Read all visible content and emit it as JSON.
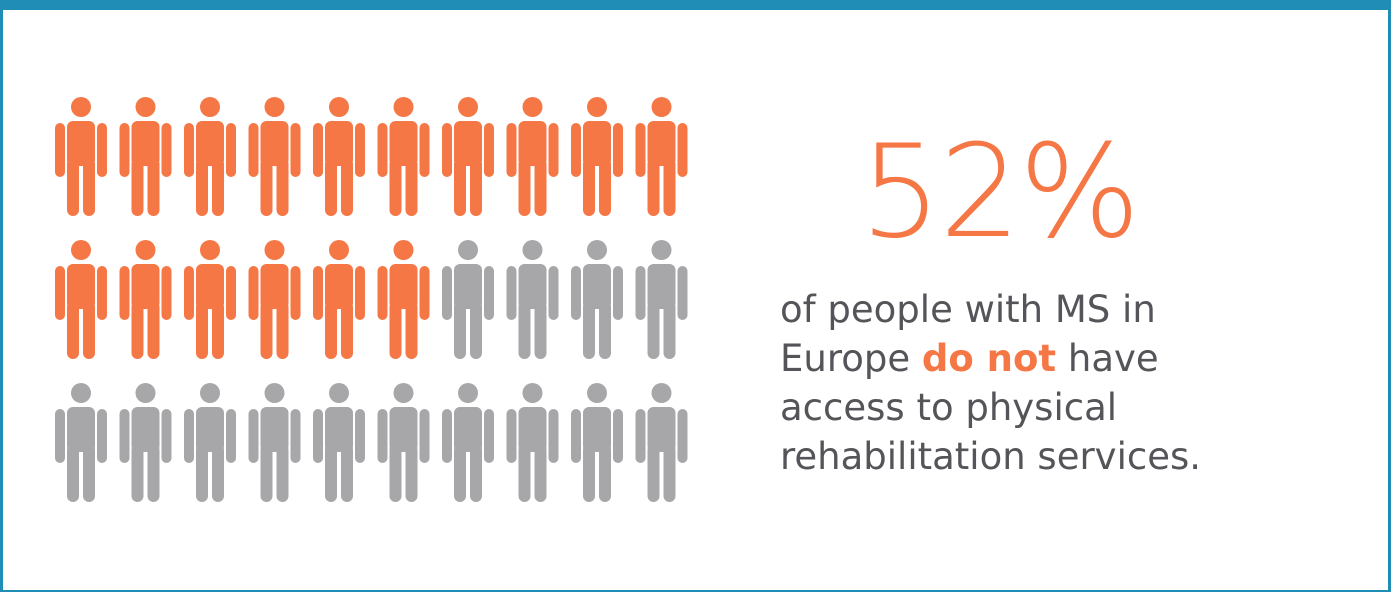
{
  "stat": {
    "value": "52%",
    "highlighted_count": 16,
    "total_count": 30
  },
  "caption": {
    "line1": "of people with MS in",
    "line2_pre": "Europe ",
    "line2_emph": "do not",
    "line2_post": " have",
    "line3": "access to physical",
    "line4": "rehabilitation services."
  },
  "colors": {
    "highlight": "#f47745",
    "muted": "#a7a6a8",
    "frame": "#1f8db5",
    "text": "#555459"
  },
  "icons": {
    "person": "person-icon"
  }
}
